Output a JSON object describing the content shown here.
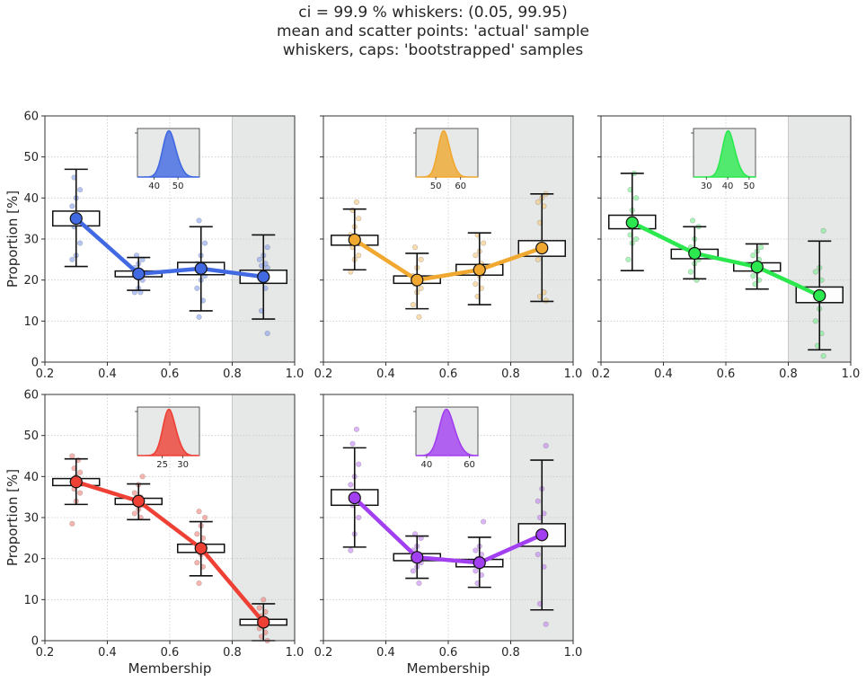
{
  "title_lines": [
    "ci = 99.9 % whiskers: (0.05, 99.95)",
    "mean and scatter points: 'actual' sample",
    "whiskers, caps: 'bootstrapped' samples"
  ],
  "chart_data": [
    {
      "type": "line",
      "name": "panel-1",
      "color": "#4169e1",
      "xlabel": "",
      "ylabel": "Proportion [%]",
      "xlim": [
        0.2,
        1.0
      ],
      "ylim": [
        0,
        60
      ],
      "xticks": [
        "0.2",
        "0.4",
        "0.6",
        "0.8",
        "1.0"
      ],
      "yticks": [
        "0",
        "10",
        "20",
        "30",
        "40",
        "50",
        "60"
      ],
      "show_yticklabels": true,
      "shaded_x_range": [
        0.8,
        1.0
      ],
      "grid": true,
      "x": [
        0.3,
        0.5,
        0.7,
        0.9
      ],
      "mean": [
        35,
        21.5,
        22.8,
        20.8
      ],
      "box_low": [
        33.2,
        20.8,
        21.3,
        19.2
      ],
      "box_high": [
        36.8,
        22.2,
        24.3,
        22.4
      ],
      "whisker_low": [
        23.3,
        17.5,
        12.5,
        10.5
      ],
      "whisker_high": [
        47,
        25.5,
        33,
        31
      ],
      "points": [
        [
          25,
          26,
          29,
          33,
          35,
          38,
          40,
          42,
          45
        ],
        [
          17,
          17,
          18,
          20,
          21,
          22,
          23,
          24,
          25,
          26
        ],
        [
          11,
          15,
          18,
          20,
          21,
          22,
          23,
          24,
          26,
          29,
          34.5
        ],
        [
          7,
          12.5,
          18,
          20,
          21,
          23,
          23.5,
          24,
          25,
          26,
          28
        ]
      ],
      "inset": {
        "xticks": [
          "40",
          "50"
        ],
        "xlim": [
          33,
          59
        ],
        "peak": 46,
        "sd": 2.5
      }
    },
    {
      "type": "line",
      "name": "panel-2",
      "color": "#f0a830",
      "xlabel": "",
      "ylabel": "",
      "xlim": [
        0.2,
        1.0
      ],
      "ylim": [
        0,
        60
      ],
      "xticks": [
        "0.2",
        "0.4",
        "0.6",
        "0.8",
        "1.0"
      ],
      "yticks": [
        "0",
        "10",
        "20",
        "30",
        "40",
        "50",
        "60"
      ],
      "show_yticklabels": false,
      "shaded_x_range": [
        0.8,
        1.0
      ],
      "grid": true,
      "x": [
        0.3,
        0.5,
        0.7,
        0.9
      ],
      "mean": [
        29.8,
        20,
        22.5,
        27.8
      ],
      "box_low": [
        28.5,
        19.2,
        21.2,
        25.8
      ],
      "box_high": [
        30.9,
        21,
        23.8,
        29.6
      ],
      "whisker_low": [
        22.5,
        13,
        14,
        14.8
      ],
      "whisker_high": [
        37.3,
        26.5,
        31.5,
        41
      ],
      "points": [
        [
          22,
          25,
          26,
          28,
          30,
          31,
          33,
          35,
          37,
          39
        ],
        [
          11,
          14,
          17,
          18,
          19,
          20,
          21,
          23,
          25,
          28
        ],
        [
          16,
          18,
          19,
          21,
          22,
          23,
          24,
          26,
          27,
          29,
          31
        ],
        [
          15,
          16,
          17,
          25,
          27,
          29,
          34,
          38,
          39,
          40,
          41
        ]
      ],
      "inset": {
        "xticks": [
          "50",
          "60"
        ],
        "xlim": [
          42,
          67
        ],
        "peak": 53,
        "sd": 2.2
      }
    },
    {
      "type": "line",
      "name": "panel-3",
      "color": "#2ce84f",
      "xlabel": "",
      "ylabel": "",
      "xlim": [
        0.2,
        1.0
      ],
      "ylim": [
        0,
        60
      ],
      "xticks": [
        "0.2",
        "0.4",
        "0.6",
        "0.8",
        "1.0"
      ],
      "yticks": [
        "0",
        "10",
        "20",
        "30",
        "40",
        "50",
        "60"
      ],
      "show_yticklabels": false,
      "shaded_x_range": [
        0.8,
        1.0
      ],
      "grid": true,
      "x": [
        0.3,
        0.5,
        0.7,
        0.9
      ],
      "mean": [
        34,
        26.5,
        23.2,
        16.2
      ],
      "box_low": [
        32.5,
        25.2,
        22.2,
        14.5
      ],
      "box_high": [
        35.8,
        27.5,
        24.2,
        18.3
      ],
      "whisker_low": [
        22.3,
        20.3,
        17.8,
        3
      ],
      "whisker_high": [
        46,
        33,
        28.8,
        29.5
      ],
      "points": [
        [
          25,
          29,
          30,
          31,
          33,
          35,
          37,
          40,
          42,
          46
        ],
        [
          20,
          22,
          24,
          25,
          26,
          27,
          28,
          30,
          33,
          34.5
        ],
        [
          19,
          20,
          21,
          22,
          23,
          24,
          25,
          26,
          27,
          28
        ],
        [
          1.5,
          4,
          7,
          10,
          13,
          15,
          17,
          20,
          22,
          23,
          32
        ]
      ],
      "inset": {
        "xticks": [
          "30",
          "40",
          "50"
        ],
        "xlim": [
          24,
          53
        ],
        "peak": 40,
        "sd": 2.6
      }
    },
    {
      "type": "line",
      "name": "panel-4",
      "color": "#ee4035",
      "xlabel": "Membership",
      "ylabel": "Proportion [%]",
      "xlim": [
        0.2,
        1.0
      ],
      "ylim": [
        0,
        60
      ],
      "xticks": [
        "0.2",
        "0.4",
        "0.6",
        "0.8",
        "1.0"
      ],
      "yticks": [
        "0",
        "10",
        "20",
        "30",
        "40",
        "50",
        "60"
      ],
      "show_yticklabels": true,
      "shaded_x_range": [
        0.8,
        1.0
      ],
      "grid": true,
      "x": [
        0.3,
        0.5,
        0.7,
        0.9
      ],
      "mean": [
        38.7,
        34,
        22.5,
        4.5
      ],
      "box_low": [
        37.8,
        33.2,
        21.5,
        3.8
      ],
      "box_high": [
        39.5,
        34.7,
        23.5,
        5.2
      ],
      "whisker_low": [
        33.2,
        29.5,
        15.8,
        0
      ],
      "whisker_high": [
        44.3,
        38.2,
        29,
        9
      ],
      "points": [
        [
          28.5,
          34,
          36,
          37,
          38,
          39,
          40,
          41,
          42,
          44,
          45
        ],
        [
          30,
          31,
          32,
          33,
          34,
          35,
          36,
          38,
          40
        ],
        [
          14,
          18,
          19,
          21,
          22,
          23,
          25,
          26,
          28,
          30,
          31.5
        ],
        [
          0,
          1,
          2,
          3,
          4,
          5,
          6,
          7,
          8,
          10
        ]
      ],
      "inset": {
        "xticks": [
          "25",
          "30"
        ],
        "xlim": [
          19,
          34
        ],
        "peak": 26.5,
        "sd": 1.4
      }
    },
    {
      "type": "line",
      "name": "panel-5",
      "color": "#a23ff0",
      "xlabel": "Membership",
      "ylabel": "",
      "xlim": [
        0.2,
        1.0
      ],
      "ylim": [
        0,
        60
      ],
      "xticks": [
        "0.2",
        "0.4",
        "0.6",
        "0.8",
        "1.0"
      ],
      "yticks": [
        "0",
        "10",
        "20",
        "30",
        "40",
        "50",
        "60"
      ],
      "show_yticklabels": false,
      "shaded_x_range": [
        0.8,
        1.0
      ],
      "grid": true,
      "x": [
        0.3,
        0.5,
        0.7,
        0.9
      ],
      "mean": [
        34.8,
        20.3,
        19,
        25.8
      ],
      "box_low": [
        33,
        19.5,
        18,
        23
      ],
      "box_high": [
        36.8,
        21.2,
        19.8,
        28.5
      ],
      "whisker_low": [
        22.8,
        15.2,
        13,
        7.5
      ],
      "whisker_high": [
        47,
        25.5,
        25.2,
        44
      ],
      "points": [
        [
          22,
          26,
          30,
          33,
          35,
          38,
          40,
          43,
          48,
          51.5
        ],
        [
          14,
          17,
          18,
          19,
          20,
          21,
          22,
          23,
          25,
          26
        ],
        [
          14,
          16,
          17,
          18,
          19,
          20,
          21,
          22,
          23,
          29
        ],
        [
          4,
          9,
          18,
          21,
          24,
          26,
          30,
          31,
          34,
          37,
          47.5
        ]
      ],
      "inset": {
        "xticks": [
          "40",
          "60"
        ],
        "xlim": [
          35,
          64
        ],
        "peak": 49,
        "sd": 3.2
      }
    }
  ]
}
